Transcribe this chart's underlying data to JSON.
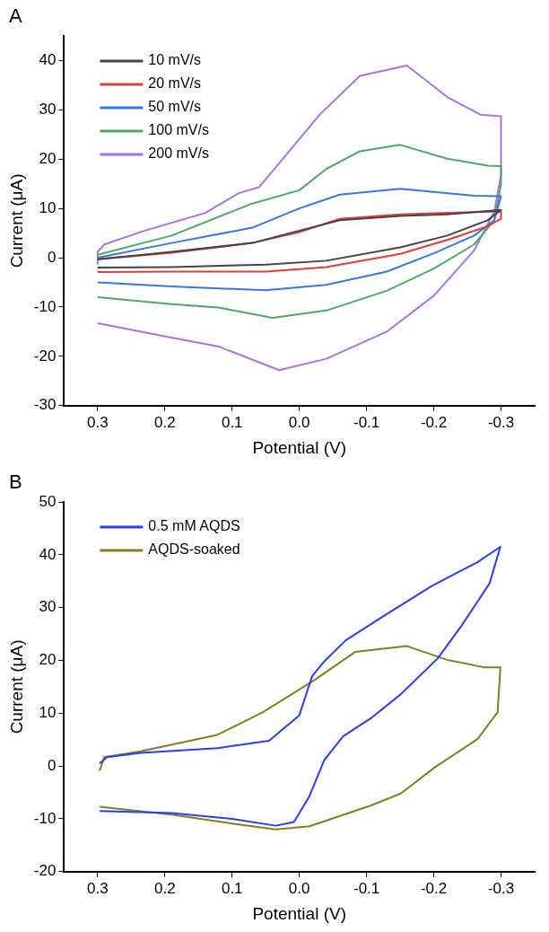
{
  "chart_data": [
    {
      "type": "line",
      "title": "A",
      "xlabel": "Potential (V)",
      "ylabel": "Current (μA)",
      "xlim": [
        0.35,
        -0.35
      ],
      "xticks": [
        0.3,
        0.2,
        0.1,
        {
          "value": 0,
          "label": "0.0"
        },
        -0.1,
        -0.2,
        -0.3
      ],
      "ylim": [
        -30,
        45
      ],
      "yticks": [
        -30,
        -20,
        -10,
        0,
        10,
        20,
        30,
        40
      ],
      "grid": false,
      "legend": "top left",
      "marker": "none",
      "line_style": "solid",
      "series": [
        {
          "name": "10 mV/s",
          "color": "#444444",
          "x": [
            0.3,
            0.19,
            0.05,
            -0.04,
            -0.15,
            -0.22,
            -0.28,
            -0.3,
            -0.22,
            -0.15,
            -0.06,
            0.0,
            0.07,
            0.19,
            0.3
          ],
          "values": [
            -2.0,
            -1.9,
            -1.4,
            -0.6,
            2.1,
            4.5,
            7.6,
            9.7,
            8.8,
            8.5,
            7.6,
            5.5,
            3.0,
            1.2,
            -0.3
          ]
        },
        {
          "name": "20 mV/s",
          "color": "#e03c3c",
          "x": [
            0.3,
            0.19,
            0.05,
            -0.04,
            -0.15,
            -0.22,
            -0.28,
            -0.3,
            -0.3,
            -0.22,
            -0.15,
            -0.06,
            0.0,
            0.07,
            0.19,
            0.3
          ],
          "values": [
            -2.9,
            -2.8,
            -2.8,
            -1.9,
            0.8,
            3.6,
            6.4,
            7.9,
            9.4,
            9.1,
            8.8,
            7.9,
            5.2,
            3.0,
            1.0,
            -0.3
          ]
        },
        {
          "name": "50 mV/s",
          "color": "#3b73e8",
          "x": [
            0.3,
            0.19,
            0.05,
            -0.04,
            -0.13,
            -0.2,
            -0.26,
            -0.29,
            -0.3,
            -0.26,
            -0.15,
            -0.06,
            0.0,
            0.07,
            0.19,
            0.3
          ],
          "values": [
            -5.0,
            -5.8,
            -6.6,
            -5.5,
            -2.8,
            0.9,
            4.5,
            7.6,
            12.5,
            12.6,
            14.0,
            12.8,
            10.0,
            6.1,
            3.0,
            0.0
          ]
        },
        {
          "name": "100 mV/s",
          "color": "#4fa866",
          "x": [
            0.3,
            0.19,
            0.12,
            0.04,
            -0.04,
            -0.13,
            -0.2,
            -0.26,
            -0.29,
            -0.3,
            -0.3,
            -0.28,
            -0.22,
            -0.15,
            -0.09,
            -0.04,
            0.0,
            0.07,
            0.19,
            0.3
          ],
          "values": [
            -8.0,
            -9.4,
            -10.1,
            -12.2,
            -10.7,
            -6.7,
            -2.2,
            2.7,
            7.6,
            14.9,
            18.6,
            18.7,
            20.1,
            22.9,
            21.6,
            18.0,
            13.7,
            11.0,
            4.5,
            0.6
          ]
        },
        {
          "name": "200 mV/s",
          "color": "#a774e3",
          "x": [
            0.3,
            0.19,
            0.12,
            0.03,
            -0.04,
            -0.13,
            -0.2,
            -0.26,
            -0.29,
            -0.3,
            -0.3,
            -0.27,
            -0.22,
            -0.16,
            -0.09,
            -0.03,
            0.015,
            0.06,
            0.09,
            0.14,
            0.23,
            0.29,
            0.3,
            0.3
          ],
          "values": [
            -13.3,
            -16.2,
            -18.0,
            -22.8,
            -20.5,
            -15.0,
            -7.7,
            1.5,
            9.4,
            16.8,
            28.7,
            29.0,
            32.6,
            39.0,
            36.9,
            29.0,
            21.6,
            14.3,
            13.1,
            9.1,
            5.5,
            2.7,
            1.2,
            -1.2
          ]
        }
      ]
    },
    {
      "type": "line",
      "title": "B",
      "xlabel": "Potential (V)",
      "ylabel": "Current (μA)",
      "xlim": [
        0.35,
        -0.35
      ],
      "xticks": [
        0.3,
        0.2,
        0.1,
        {
          "value": 0,
          "label": "0.0"
        },
        -0.1,
        -0.2,
        -0.3
      ],
      "ylim": [
        -20,
        50
      ],
      "yticks": [
        -20,
        -10,
        0,
        10,
        20,
        30,
        40,
        50
      ],
      "grid": false,
      "legend": "top left",
      "marker": "none",
      "line_style": "solid",
      "series": [
        {
          "name": "0.5 mM AQDS",
          "color": "#2a3cf5",
          "x": [
            0.297,
            0.19,
            0.1,
            0.035,
            0.008,
            -0.015,
            -0.037,
            -0.065,
            -0.106,
            -0.151,
            -0.206,
            -0.242,
            -0.283,
            -0.299,
            -0.265,
            -0.197,
            -0.129,
            -0.069,
            -0.037,
            -0.019,
            0.0,
            0.045,
            0.122,
            0.236,
            0.286,
            0.297
          ],
          "values": [
            -8.5,
            -8.9,
            -10.0,
            -11.3,
            -10.6,
            -5.7,
            1.1,
            5.6,
            9.0,
            13.6,
            20.4,
            26.7,
            34.6,
            41.5,
            38.6,
            34.1,
            28.7,
            23.8,
            19.8,
            17.0,
            9.6,
            4.8,
            3.4,
            2.5,
            1.7,
            0.5
          ]
        },
        {
          "name": "AQDS-soaked",
          "color": "#808020",
          "x": [
            0.297,
            0.19,
            0.1,
            0.035,
            -0.015,
            -0.106,
            -0.151,
            -0.201,
            -0.265,
            -0.295,
            -0.299,
            -0.274,
            -0.22,
            -0.16,
            -0.083,
            -0.024,
            0.054,
            0.122,
            0.236,
            0.29,
            0.297
          ],
          "values": [
            -7.7,
            -9.2,
            -10.9,
            -12.0,
            -11.4,
            -7.5,
            -5.2,
            -0.3,
            5.1,
            10.2,
            18.7,
            18.7,
            20.1,
            22.7,
            21.6,
            16.4,
            10.2,
            5.9,
            2.8,
            1.7,
            -0.9
          ]
        }
      ]
    }
  ]
}
